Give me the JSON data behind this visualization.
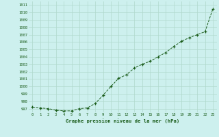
{
  "x": [
    0,
    1,
    2,
    3,
    4,
    5,
    6,
    7,
    8,
    9,
    10,
    11,
    12,
    13,
    14,
    15,
    16,
    17,
    18,
    19,
    20,
    21,
    22,
    23
  ],
  "y": [
    997.2,
    997.1,
    997.0,
    996.8,
    996.7,
    996.7,
    997.0,
    997.1,
    997.7,
    998.8,
    1000.0,
    1001.1,
    1001.6,
    1002.5,
    1003.0,
    1003.4,
    1004.0,
    1004.6,
    1005.4,
    1006.1,
    1006.6,
    1007.0,
    1007.4,
    1010.5
  ],
  "title": "Graphe pression niveau de la mer (hPa)",
  "bg_color": "#cdf0ee",
  "line_color": "#1a5c1a",
  "marker_color": "#1a5c1a",
  "grid_color": "#b0d8cc",
  "text_color": "#1a5c1a",
  "ylim_min": 996.5,
  "ylim_max": 1011.5,
  "yticks": [
    997,
    998,
    999,
    1000,
    1001,
    1002,
    1003,
    1004,
    1005,
    1006,
    1007,
    1008,
    1009,
    1010,
    1011
  ],
  "xticks": [
    0,
    1,
    2,
    3,
    4,
    5,
    6,
    7,
    8,
    9,
    10,
    11,
    12,
    13,
    14,
    15,
    16,
    17,
    18,
    19,
    20,
    21,
    22,
    23
  ]
}
